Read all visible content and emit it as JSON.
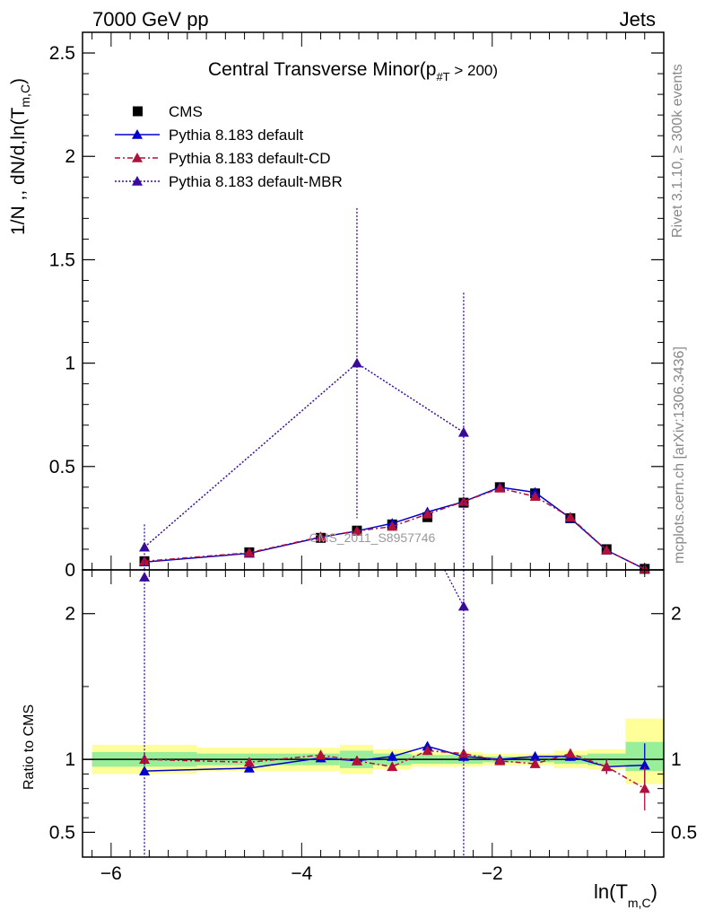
{
  "header": {
    "left": "7000 GeV pp",
    "right": "Jets"
  },
  "side_labels": {
    "rivet": "Rivet 3.1.10, ≥ 300k events",
    "mcplots": "mcplots.cern.ch [arXiv:1306.3436]"
  },
  "watermark": "CMS_2011_S8957746",
  "chart_data": [
    {
      "type": "line",
      "panel": "main",
      "title": "Central Transverse Minor",
      "title_suffix": "(p",
      "title_sub": "#T",
      "title_cut": " > 200)",
      "ylabel": "1/N ,, dN/d,ln(T",
      "ylabel_sub": "m,C",
      "ylabel_close": ")",
      "xlabel": "ln(T",
      "xlabel_sub": "m,C",
      "xlabel_close": ")",
      "xlim": [
        -6.3,
        -0.2
      ],
      "ylim": [
        0,
        2.6
      ],
      "yticks": [
        0,
        0.5,
        1,
        1.5,
        2,
        2.5
      ],
      "ytick_labels": [
        "0",
        "0.5",
        "1",
        "1.5",
        "2",
        "2.5"
      ],
      "legend_position": "top-left",
      "series": [
        {
          "name": "CMS",
          "color": "#000000",
          "marker": "square",
          "x": [
            -5.65,
            -4.55,
            -3.8,
            -3.42,
            -3.05,
            -2.68,
            -2.3,
            -1.92,
            -1.55,
            -1.18,
            -0.8,
            -0.4
          ],
          "y": [
            0.042,
            0.085,
            0.155,
            0.19,
            0.22,
            0.255,
            0.325,
            0.4,
            0.37,
            0.25,
            0.1,
            0.005
          ]
        },
        {
          "name": "Pythia 8.183 default",
          "color": "#0000cc",
          "marker": "triangle",
          "dash": "",
          "x": [
            -5.65,
            -4.55,
            -3.8,
            -3.42,
            -3.05,
            -2.68,
            -2.3,
            -1.92,
            -1.55,
            -1.18,
            -0.8,
            -0.4
          ],
          "y": [
            0.038,
            0.08,
            0.158,
            0.188,
            0.225,
            0.28,
            0.33,
            0.4,
            0.375,
            0.25,
            0.095,
            0.004
          ]
        },
        {
          "name": "Pythia 8.183 default-CD",
          "color": "#b0103a",
          "marker": "triangle",
          "dash": "6,3,2,3",
          "x": [
            -5.65,
            -4.55,
            -3.8,
            -3.42,
            -3.05,
            -2.68,
            -2.3,
            -1.92,
            -1.55,
            -1.18,
            -0.8,
            -0.4
          ],
          "y": [
            0.042,
            0.083,
            0.16,
            0.188,
            0.21,
            0.27,
            0.33,
            0.395,
            0.355,
            0.255,
            0.095,
            0.004
          ]
        },
        {
          "name": "Pythia 8.183 default-MBR",
          "color": "#3a0a9a",
          "marker": "triangle",
          "dash": "2,2",
          "x": [
            -5.65,
            -3.42,
            -2.3
          ],
          "y": [
            0.11,
            1.0,
            0.665
          ],
          "err_up": [
            0.22,
            1.75,
            1.34
          ],
          "err_down": [
            0.0,
            0.25,
            0.0
          ]
        }
      ]
    },
    {
      "type": "line",
      "panel": "ratio",
      "ylabel": "Ratio to CMS",
      "xlim": [
        -6.3,
        -0.2
      ],
      "ylim": [
        0.33,
        2.3
      ],
      "yticks": [
        0.5,
        1,
        2
      ],
      "ytick_labels": [
        "0.5",
        "1",
        "2"
      ],
      "xticks": [
        -6,
        -4,
        -2
      ],
      "xtick_labels": [
        "−6",
        "−4",
        "−2"
      ],
      "bands": {
        "bins": [
          -6.2,
          -5.1,
          -4.0,
          -3.6,
          -3.25,
          -2.85,
          -2.5,
          -2.1,
          -1.75,
          -1.35,
          -1.0,
          -0.6,
          -0.2
        ],
        "green": [
          [
            0.95,
            1.05
          ],
          [
            0.96,
            1.04
          ],
          [
            0.96,
            1.04
          ],
          [
            0.94,
            1.06
          ],
          [
            0.96,
            1.04
          ],
          [
            0.97,
            1.03
          ],
          [
            0.97,
            1.03
          ],
          [
            0.98,
            1.02
          ],
          [
            0.98,
            1.02
          ],
          [
            0.97,
            1.03
          ],
          [
            0.96,
            1.04
          ],
          [
            0.92,
            1.12
          ]
        ],
        "yellow": [
          [
            0.9,
            1.1
          ],
          [
            0.92,
            1.08
          ],
          [
            0.92,
            1.08
          ],
          [
            0.9,
            1.1
          ],
          [
            0.93,
            1.07
          ],
          [
            0.95,
            1.05
          ],
          [
            0.95,
            1.05
          ],
          [
            0.96,
            1.04
          ],
          [
            0.96,
            1.04
          ],
          [
            0.94,
            1.06
          ],
          [
            0.93,
            1.07
          ],
          [
            0.83,
            1.28
          ]
        ]
      },
      "series": [
        {
          "name": "Pythia 8.183 default",
          "color": "#0000cc",
          "marker": "triangle",
          "dash": "",
          "x": [
            -5.65,
            -4.55,
            -3.8,
            -3.42,
            -3.05,
            -2.68,
            -2.3,
            -1.92,
            -1.55,
            -1.18,
            -0.8,
            -0.4
          ],
          "y": [
            0.92,
            0.94,
            1.01,
            0.99,
            1.02,
            1.09,
            1.02,
            1.0,
            1.02,
            1.02,
            0.95,
            0.96
          ],
          "err": [
            0.03,
            0.02,
            0.03,
            0.03,
            0.03,
            0.03,
            0.03,
            0.02,
            0.02,
            0.03,
            0.05,
            0.15
          ]
        },
        {
          "name": "Pythia 8.183 default-CD",
          "color": "#b0103a",
          "marker": "triangle",
          "dash": "6,3,2,3",
          "x": [
            -5.65,
            -4.55,
            -3.8,
            -3.42,
            -3.05,
            -2.68,
            -2.3,
            -1.92,
            -1.55,
            -1.18,
            -0.8,
            -0.4
          ],
          "y": [
            1.0,
            0.98,
            1.03,
            0.99,
            0.95,
            1.06,
            1.04,
            0.99,
            0.97,
            1.04,
            0.95,
            0.8
          ],
          "err": [
            0.04,
            0.03,
            0.03,
            0.03,
            0.02,
            0.03,
            0.03,
            0.02,
            0.02,
            0.03,
            0.05,
            0.15
          ]
        },
        {
          "name": "Pythia 8.183 default-MBR",
          "color": "#3a0a9a",
          "marker": "triangle",
          "dash": "2,2",
          "x": [
            -5.65,
            -2.3
          ],
          "y": [
            2.25,
            2.05
          ],
          "err": [
            2.0,
            1.8
          ],
          "incoming_from": [
            -2.5,
            2.3
          ]
        }
      ]
    }
  ]
}
